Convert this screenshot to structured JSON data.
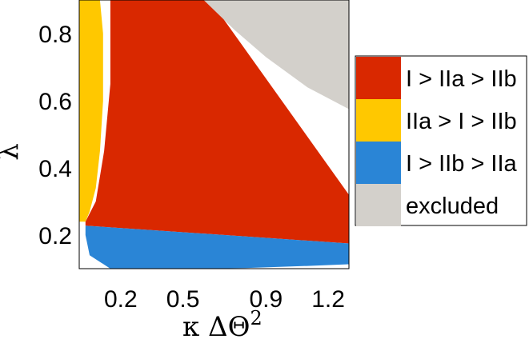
{
  "chart_data": {
    "type": "area",
    "title": "",
    "xlabel": "κ ΔΘ",
    "xlabel_superscript": "2",
    "ylabel": "λ",
    "xlim": [
      0,
      1.3
    ],
    "ylim": [
      0.1,
      0.9
    ],
    "x_ticks": [
      0.2,
      0.5,
      0.9,
      1.2
    ],
    "x_tick_labels": [
      "0.2",
      "0.5",
      "0.9",
      "1.2"
    ],
    "y_ticks": [
      0.2,
      0.4,
      0.6,
      0.8
    ],
    "y_tick_labels": [
      "0.2",
      "0.4",
      "0.6",
      "0.8"
    ],
    "grid": false,
    "legend_position": "right",
    "series": [
      {
        "name": "I > IIa > IIb",
        "color": "#D92800",
        "region": [
          [
            0.15,
            0.9
          ],
          [
            0.63,
            0.9
          ],
          [
            1.3,
            0.32
          ],
          [
            1.3,
            0.175
          ],
          [
            0.03,
            0.228
          ],
          [
            0.03,
            0.24
          ],
          [
            0.08,
            0.3
          ],
          [
            0.12,
            0.45
          ],
          [
            0.15,
            0.65
          ]
        ]
      },
      {
        "name": "IIa > I > IIb",
        "color": "#FFC800",
        "region": [
          [
            0.0,
            0.9
          ],
          [
            0.1,
            0.9
          ],
          [
            0.115,
            0.8
          ],
          [
            0.115,
            0.6
          ],
          [
            0.1,
            0.45
          ],
          [
            0.08,
            0.34
          ],
          [
            0.05,
            0.27
          ],
          [
            0.03,
            0.24
          ],
          [
            0.0,
            0.24
          ]
        ]
      },
      {
        "name": "I > IIb > IIa",
        "color": "#2A85D6",
        "region": [
          [
            0.03,
            0.228
          ],
          [
            1.3,
            0.175
          ],
          [
            1.3,
            0.113
          ],
          [
            1.1,
            0.108
          ],
          [
            0.8,
            0.102
          ],
          [
            0.55,
            0.1
          ],
          [
            0.15,
            0.1
          ],
          [
            0.05,
            0.14
          ],
          [
            0.03,
            0.2
          ]
        ]
      },
      {
        "name": "excluded",
        "color": "#D3D0CB",
        "region": [
          [
            0.6,
            0.9
          ],
          [
            1.3,
            0.9
          ],
          [
            1.3,
            0.575
          ],
          [
            1.1,
            0.64
          ],
          [
            0.9,
            0.73
          ],
          [
            0.75,
            0.81
          ]
        ]
      }
    ]
  }
}
